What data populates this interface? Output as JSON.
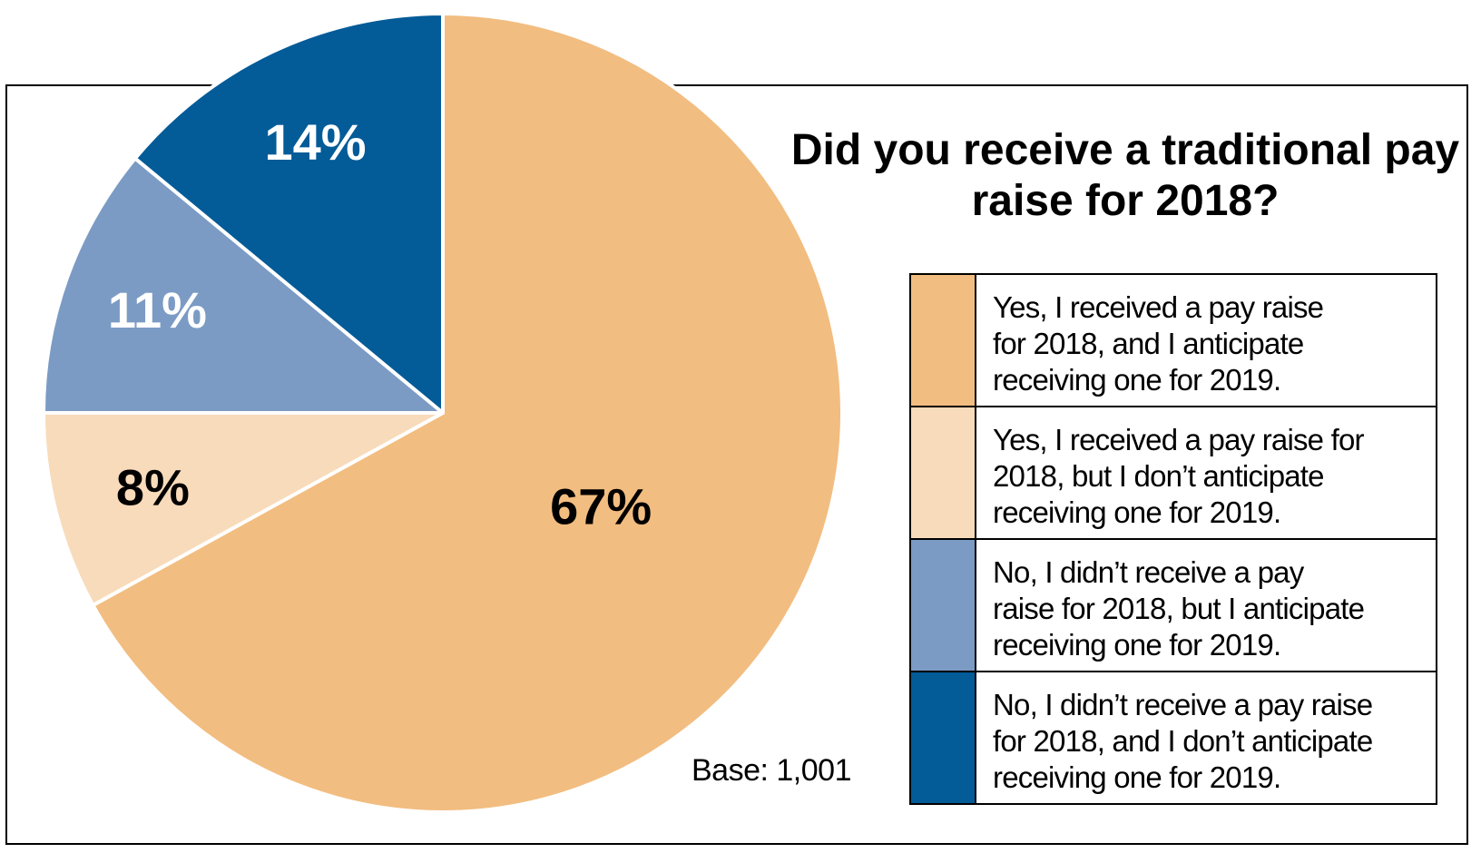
{
  "colors": {
    "received_anticipate": "#f2bd80",
    "received_no_anticipate": "#f8dbba",
    "not_received_anticipate": "#7b9bc4",
    "not_received_no_anticipate": "#035b98",
    "separator": "#ffffff",
    "border": "#000000"
  },
  "chart_data": {
    "type": "pie",
    "title": "Did you receive a traditional pay raise for 2018?",
    "slices": [
      {
        "label": "Yes, I received a pay raise for 2018, and I anticipate receiving one for 2019.",
        "value": 67,
        "value_label": "67%",
        "color": "#f2bd80",
        "label_color": "#000000"
      },
      {
        "label": "Yes, I received a pay raise for 2018, but I don’t anticipate receiving one for 2019.",
        "value": 8,
        "value_label": "8%",
        "color": "#f8dbba",
        "label_color": "#000000"
      },
      {
        "label": "No, I didn’t receive a pay raise for 2018, but I anticipate receiving one for 2019.",
        "value": 11,
        "value_label": "11%",
        "color": "#7b9bc4",
        "label_color": "#ffffff"
      },
      {
        "label": "No, I didn’t receive a pay raise for 2018, and I don’t anticipate receiving one for 2019.",
        "value": 14,
        "value_label": "14%",
        "color": "#035b98",
        "label_color": "#ffffff"
      }
    ],
    "direction": "clockwise from 12 o'clock",
    "legend_position": "right",
    "note": "Base: 1,001"
  },
  "legend": {
    "items": [
      {
        "text": "Yes, I received a pay raise\nfor 2018, and I anticipate\nreceiving one for 2019.",
        "color": "#f2bd80"
      },
      {
        "text": "Yes, I received a pay raise for\n2018, but I don’t anticipate\nreceiving one for 2019.",
        "color": "#f8dbba"
      },
      {
        "text": "No, I didn’t receive a pay\nraise for 2018, but I anticipate\nreceiving one for 2019.",
        "color": "#7b9bc4"
      },
      {
        "text": "No, I didn’t receive a pay raise\nfor 2018, and I don’t anticipate\nreceiving one for 2019.",
        "color": "#035b98"
      }
    ]
  }
}
